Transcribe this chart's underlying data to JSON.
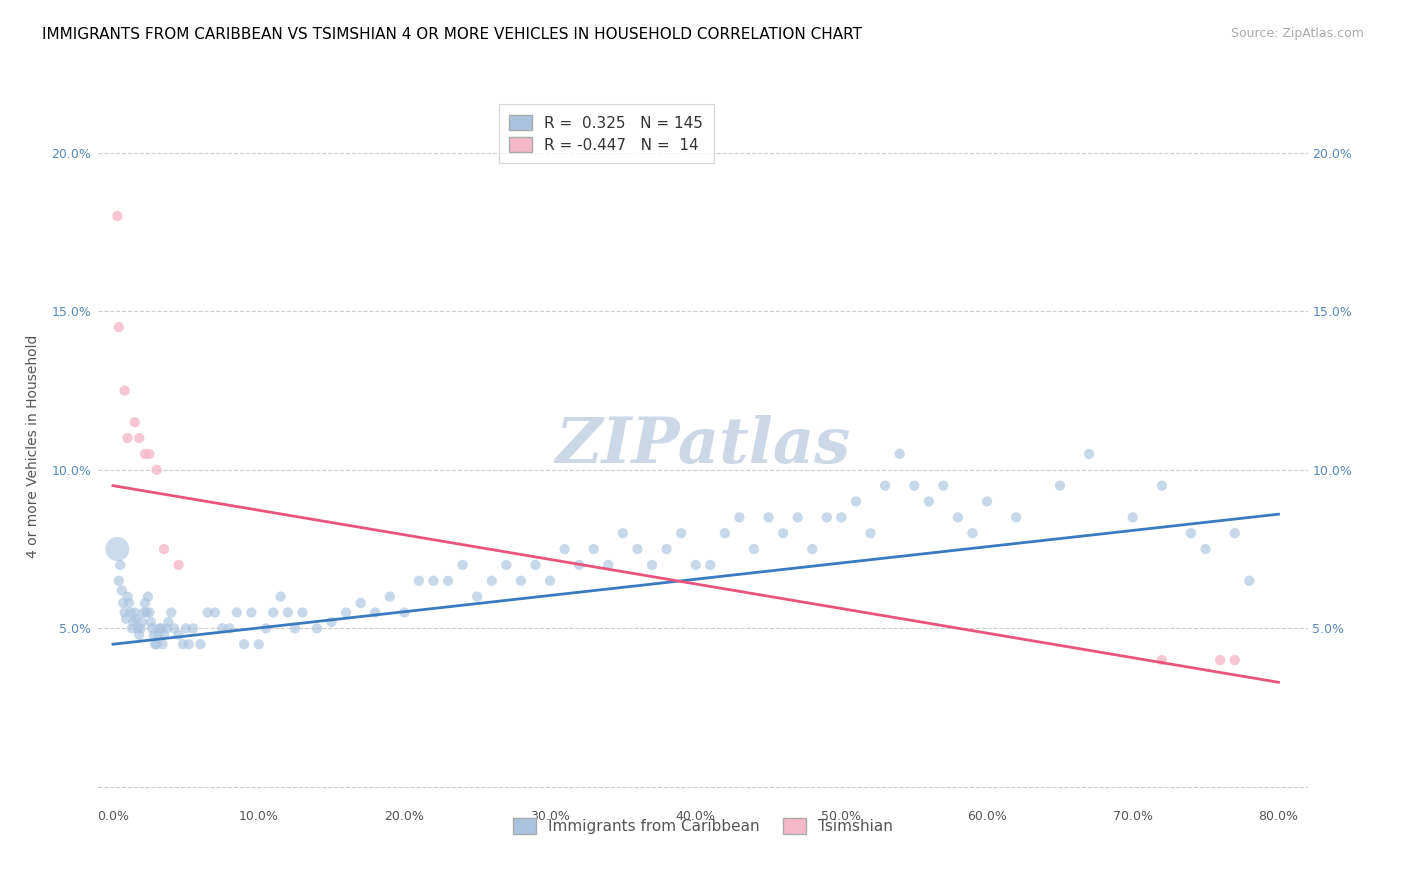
{
  "title": "IMMIGRANTS FROM CARIBBEAN VS TSIMSHIAN 4 OR MORE VEHICLES IN HOUSEHOLD CORRELATION CHART",
  "source": "Source: ZipAtlas.com",
  "ylabel": "4 or more Vehicles in Household",
  "x_ticks": [
    0.0,
    10.0,
    20.0,
    30.0,
    40.0,
    50.0,
    60.0,
    70.0,
    80.0
  ],
  "y_ticks": [
    0.0,
    5.0,
    10.0,
    15.0,
    20.0
  ],
  "xlim": [
    -1.0,
    82.0
  ],
  "ylim": [
    -0.5,
    22.0
  ],
  "blue_color": "#aac4e0",
  "pink_color": "#f4b8c8",
  "line_blue": "#3a7bbf",
  "line_pink": "#e8547a",
  "watermark": "ZIPatlas",
  "watermark_color": "#ccd8e8",
  "blue_line_x": [
    0.0,
    80.0
  ],
  "blue_line_y": [
    4.5,
    8.6
  ],
  "pink_line_x": [
    0.0,
    80.0
  ],
  "pink_line_y": [
    9.5,
    3.3
  ],
  "blue_scatter_x": [
    0.4,
    0.5,
    0.6,
    0.7,
    0.8,
    0.9,
    1.0,
    1.1,
    1.2,
    1.3,
    1.4,
    1.5,
    1.6,
    1.7,
    1.8,
    1.9,
    2.0,
    2.1,
    2.2,
    2.3,
    2.4,
    2.5,
    2.6,
    2.7,
    2.8,
    2.9,
    3.0,
    3.1,
    3.2,
    3.3,
    3.4,
    3.5,
    3.7,
    3.8,
    4.0,
    4.2,
    4.5,
    4.8,
    5.0,
    5.2,
    5.5,
    6.0,
    6.5,
    7.0,
    7.5,
    8.0,
    8.5,
    9.0,
    9.5,
    10.0,
    10.5,
    11.0,
    11.5,
    12.0,
    12.5,
    13.0,
    14.0,
    15.0,
    16.0,
    17.0,
    18.0,
    19.0,
    20.0,
    21.0,
    22.0,
    23.0,
    24.0,
    25.0,
    26.0,
    27.0,
    28.0,
    29.0,
    30.0,
    31.0,
    32.0,
    33.0,
    34.0,
    35.0,
    36.0,
    37.0,
    38.0,
    39.0,
    40.0,
    41.0,
    42.0,
    43.0,
    44.0,
    45.0,
    46.0,
    47.0,
    48.0,
    49.0,
    50.0,
    51.0,
    52.0,
    53.0,
    54.0,
    55.0,
    56.0,
    57.0,
    58.0,
    59.0,
    60.0,
    62.0,
    65.0,
    67.0,
    70.0,
    72.0,
    74.0,
    75.0,
    77.0,
    78.0
  ],
  "blue_scatter_y": [
    6.5,
    7.0,
    6.2,
    5.8,
    5.5,
    5.3,
    6.0,
    5.8,
    5.5,
    5.0,
    5.2,
    5.5,
    5.3,
    5.0,
    4.8,
    5.0,
    5.2,
    5.5,
    5.8,
    5.5,
    6.0,
    5.5,
    5.2,
    5.0,
    4.8,
    4.5,
    4.5,
    4.8,
    5.0,
    5.0,
    4.5,
    4.8,
    5.0,
    5.2,
    5.5,
    5.0,
    4.8,
    4.5,
    5.0,
    4.5,
    5.0,
    4.5,
    5.5,
    5.5,
    5.0,
    5.0,
    5.5,
    4.5,
    5.5,
    4.5,
    5.0,
    5.5,
    6.0,
    5.5,
    5.0,
    5.5,
    5.0,
    5.2,
    5.5,
    5.8,
    5.5,
    6.0,
    5.5,
    6.5,
    6.5,
    6.5,
    7.0,
    6.0,
    6.5,
    7.0,
    6.5,
    7.0,
    6.5,
    7.5,
    7.0,
    7.5,
    7.0,
    8.0,
    7.5,
    7.0,
    7.5,
    8.0,
    7.0,
    7.0,
    8.0,
    8.5,
    7.5,
    8.5,
    8.0,
    8.5,
    7.5,
    8.5,
    8.5,
    9.0,
    8.0,
    9.5,
    10.5,
    9.5,
    9.0,
    9.5,
    8.5,
    8.0,
    9.0,
    8.5,
    9.5,
    10.5,
    8.5,
    9.5,
    8.0,
    7.5,
    8.0,
    6.5
  ],
  "blue_scatter_sizes": [
    40,
    40,
    40,
    40,
    40,
    40,
    40,
    40,
    40,
    40,
    40,
    40,
    40,
    40,
    40,
    40,
    40,
    40,
    40,
    40,
    40,
    40,
    40,
    40,
    40,
    40,
    40,
    40,
    40,
    40,
    40,
    40,
    40,
    40,
    40,
    40,
    40,
    40,
    40,
    40,
    40,
    40,
    40,
    40,
    40,
    40,
    40,
    40,
    40,
    40,
    40,
    40,
    40,
    40,
    40,
    40,
    40,
    40,
    40,
    40,
    40,
    40,
    40,
    40,
    40,
    40,
    40,
    40,
    40,
    40,
    40,
    40,
    40,
    40,
    40,
    40,
    40,
    40,
    40,
    40,
    40,
    40,
    40,
    40,
    40,
    40,
    40,
    40,
    40,
    40,
    40,
    40,
    40,
    40,
    40,
    40,
    40,
    40,
    40,
    40,
    40,
    40,
    40,
    40,
    40,
    40,
    40,
    40,
    40,
    40,
    40,
    40
  ],
  "blue_big_dot_x": 0.3,
  "blue_big_dot_y": 7.5,
  "blue_big_dot_size": 300,
  "pink_scatter_x": [
    0.3,
    0.4,
    0.8,
    1.0,
    1.5,
    1.8,
    2.2,
    2.5,
    3.0,
    72.0,
    76.0,
    77.0
  ],
  "pink_scatter_y": [
    18.0,
    14.5,
    12.5,
    11.0,
    11.5,
    11.0,
    10.5,
    10.5,
    10.0,
    4.0,
    4.0,
    4.0
  ],
  "pink_scatter2_x": [
    3.5,
    4.5
  ],
  "pink_scatter2_y": [
    7.5,
    7.0
  ],
  "title_fontsize": 11,
  "source_fontsize": 9,
  "ylabel_fontsize": 10,
  "tick_fontsize": 9,
  "legend_fontsize": 11
}
